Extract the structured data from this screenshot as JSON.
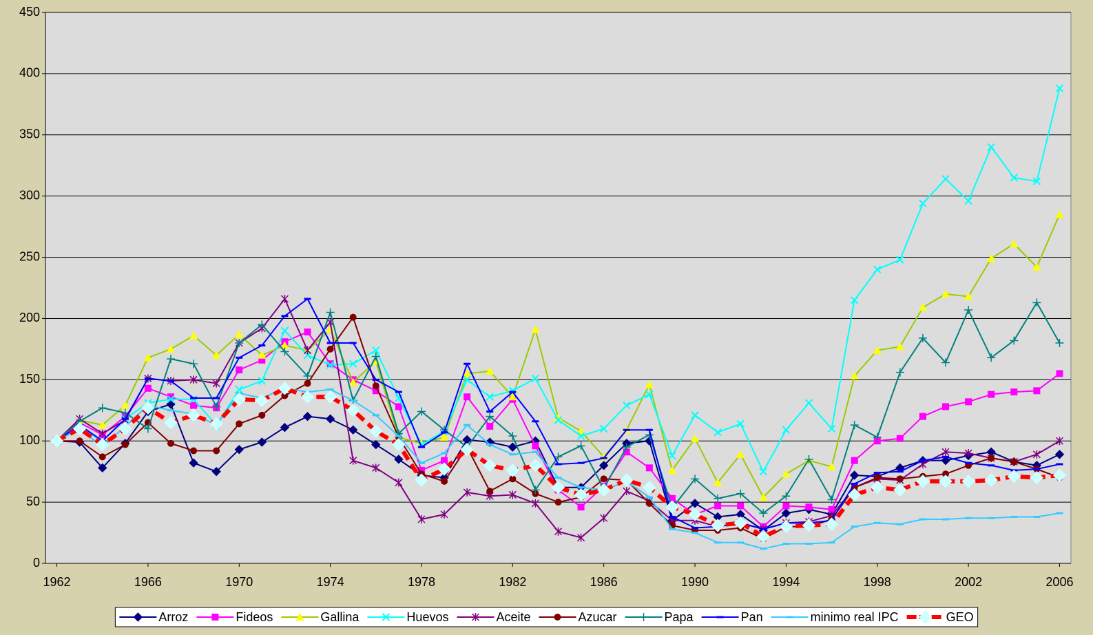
{
  "chart_data": {
    "type": "line",
    "x": [
      1962,
      1963,
      1964,
      1965,
      1966,
      1967,
      1968,
      1969,
      1970,
      1971,
      1972,
      1973,
      1974,
      1975,
      1976,
      1977,
      1978,
      1979,
      1980,
      1981,
      1982,
      1983,
      1984,
      1985,
      1986,
      1987,
      1988,
      1989,
      1990,
      1991,
      1992,
      1993,
      1994,
      1995,
      1996,
      1997,
      1998,
      1999,
      2000,
      2001,
      2002,
      2003,
      2004,
      2005,
      2006
    ],
    "xlim": [
      1961.5,
      2006.5
    ],
    "xticks": [
      1962,
      1966,
      1970,
      1974,
      1978,
      1982,
      1986,
      1990,
      1994,
      1998,
      2002,
      2006
    ],
    "ylim": [
      0,
      450
    ],
    "yticks": [
      0,
      50,
      100,
      150,
      200,
      250,
      300,
      350,
      400,
      450
    ],
    "grid": true,
    "legend": "bottom",
    "series": [
      {
        "name": "Arroz",
        "color": "#000080",
        "marker": "diamond",
        "values": [
          100,
          99,
          78,
          98,
          124,
          130,
          82,
          75,
          93,
          99,
          111,
          120,
          118,
          109,
          97,
          85,
          72,
          70,
          101,
          99,
          95,
          100,
          62,
          62,
          80,
          98,
          100,
          35,
          49,
          38,
          40,
          27,
          41,
          44,
          40,
          72,
          71,
          78,
          84,
          84,
          88,
          91,
          83,
          80,
          89
        ]
      },
      {
        "name": "Fideos",
        "color": "#ff00ff",
        "marker": "square",
        "values": [
          100,
          115,
          105,
          120,
          143,
          136,
          129,
          127,
          158,
          166,
          181,
          189,
          163,
          150,
          141,
          128,
          76,
          84,
          136,
          112,
          134,
          96,
          60,
          46,
          63,
          91,
          78,
          53,
          40,
          47,
          47,
          30,
          47,
          46,
          44,
          84,
          100,
          102,
          120,
          128,
          132,
          138,
          140,
          141,
          155
        ]
      },
      {
        "name": "Gallina",
        "color": "#99cc00",
        "marker": "triangle",
        "marker_color": "#ffff00",
        "values": [
          100,
          117,
          113,
          129,
          168,
          175,
          186,
          170,
          187,
          170,
          178,
          174,
          191,
          148,
          165,
          103,
          98,
          103,
          155,
          157,
          136,
          191,
          119,
          108,
          87,
          109,
          146,
          76,
          102,
          66,
          89,
          54,
          73,
          84,
          79,
          153,
          174,
          177,
          209,
          220,
          218,
          249,
          261,
          242,
          285
        ]
      },
      {
        "name": "Huevos",
        "color": "#00ffff",
        "marker": "x",
        "values": [
          100,
          111,
          100,
          118,
          131,
          134,
          134,
          113,
          142,
          149,
          190,
          170,
          162,
          163,
          174,
          135,
          97,
          108,
          150,
          136,
          141,
          151,
          117,
          104,
          110,
          129,
          138,
          88,
          121,
          107,
          114,
          75,
          109,
          131,
          110,
          215,
          240,
          248,
          294,
          314,
          296,
          340,
          315,
          312,
          388
        ]
      },
      {
        "name": "Aceite",
        "color": "#800080",
        "marker": "asterisk",
        "values": [
          100,
          118,
          106,
          117,
          151,
          149,
          150,
          147,
          180,
          192,
          216,
          174,
          197,
          84,
          78,
          66,
          36,
          40,
          58,
          55,
          56,
          49,
          26,
          21,
          37,
          59,
          51,
          35,
          35,
          30,
          33,
          28,
          33,
          34,
          39,
          62,
          69,
          68,
          81,
          91,
          90,
          86,
          83,
          89,
          100
        ]
      },
      {
        "name": "Azucar",
        "color": "#800000",
        "marker": "circle",
        "values": [
          100,
          100,
          87,
          97,
          115,
          98,
          92,
          92,
          114,
          121,
          137,
          147,
          175,
          201,
          145,
          103,
          73,
          67,
          95,
          59,
          69,
          57,
          50,
          54,
          69,
          68,
          49,
          31,
          27,
          27,
          29,
          20,
          30,
          30,
          36,
          62,
          70,
          69,
          71,
          73,
          80,
          86,
          83,
          77,
          70
        ]
      },
      {
        "name": "Papa",
        "color": "#008080",
        "marker": "plus",
        "values": [
          100,
          116,
          127,
          123,
          110,
          167,
          163,
          128,
          180,
          195,
          173,
          153,
          205,
          133,
          169,
          106,
          124,
          109,
          95,
          120,
          104,
          60,
          87,
          96,
          61,
          95,
          105,
          45,
          69,
          53,
          57,
          41,
          55,
          85,
          52,
          113,
          103,
          156,
          184,
          164,
          207,
          168,
          182,
          213,
          180
        ]
      },
      {
        "name": "Pan",
        "color": "#0000ff",
        "marker": "dash",
        "values": [
          100,
          113,
          100,
          118,
          151,
          149,
          135,
          135,
          168,
          178,
          202,
          216,
          180,
          180,
          150,
          140,
          95,
          107,
          163,
          124,
          140,
          116,
          81,
          82,
          86,
          109,
          109,
          38,
          29,
          30,
          33,
          28,
          33,
          33,
          35,
          65,
          74,
          75,
          84,
          87,
          82,
          80,
          76,
          77,
          81
        ]
      },
      {
        "name": "minimo real IPC",
        "color": "#33ccff",
        "marker": "dash",
        "values": [
          100,
          110,
          95,
          112,
          129,
          125,
          122,
          113,
          139,
          135,
          143,
          140,
          142,
          133,
          121,
          104,
          82,
          90,
          113,
          97,
          89,
          91,
          70,
          62,
          60,
          67,
          54,
          28,
          25,
          17,
          17,
          12,
          16,
          16,
          17,
          30,
          33,
          32,
          36,
          36,
          37,
          37,
          38,
          38,
          41
        ]
      },
      {
        "name": "GEO",
        "color": "#ff0000",
        "marker": "diamond",
        "marker_color": "#ccffff",
        "line_width": 6,
        "dashed": true,
        "values": [
          100,
          110,
          97,
          110,
          127,
          115,
          121,
          114,
          134,
          133,
          143,
          136,
          136,
          125,
          108,
          97,
          68,
          77,
          93,
          80,
          76,
          80,
          62,
          56,
          60,
          68,
          62,
          46,
          40,
          31,
          33,
          22,
          30,
          31,
          32,
          56,
          62,
          60,
          67,
          67,
          67,
          68,
          71,
          70,
          72
        ]
      }
    ]
  }
}
